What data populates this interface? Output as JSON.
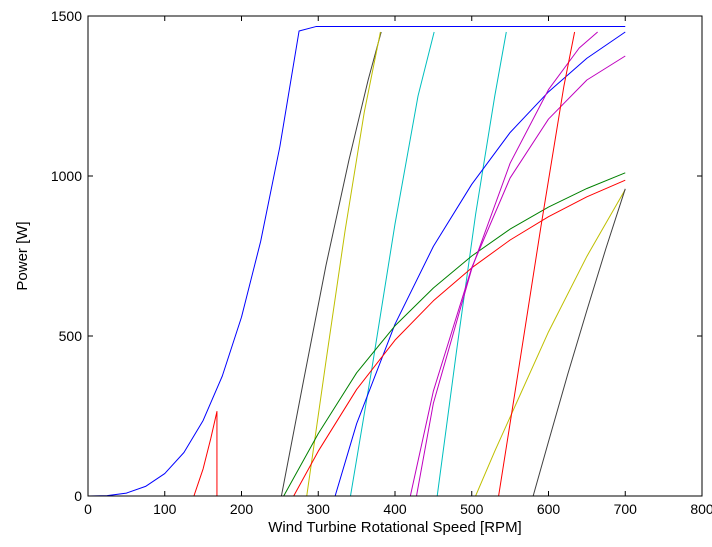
{
  "chart_data": {
    "type": "line",
    "title": "",
    "xlabel": "Wind Turbine Rotational Speed [RPM]",
    "ylabel": "Power [W]",
    "xlim": [
      0,
      800
    ],
    "ylim": [
      0,
      1500
    ],
    "xticks": [
      0,
      100,
      200,
      300,
      400,
      500,
      600,
      700,
      800
    ],
    "yticks": [
      0,
      500,
      1000,
      1500
    ],
    "grid": false,
    "legend": "none",
    "series": [
      {
        "color": "#0000ff",
        "x": [
          0,
          25,
          50,
          75,
          100,
          125,
          150,
          175,
          200,
          225,
          250,
          275,
          297,
          297.5,
          700
        ],
        "y": [
          0,
          1,
          9,
          30,
          70,
          136,
          236,
          375,
          559,
          796,
          1092,
          1453,
          1467,
          1467,
          1467
        ]
      },
      {
        "color": "#ff0000",
        "x": [
          0,
          138,
          150,
          160,
          168,
          168,
          700
        ],
        "y": [
          0,
          0,
          85,
          180,
          264,
          0,
          0
        ]
      },
      {
        "color": "#404040",
        "x": [
          0,
          252,
          280,
          310,
          340,
          365,
          382
        ],
        "y": [
          0,
          0,
          350,
          720,
          1050,
          1300,
          1450
        ]
      },
      {
        "color": "#bfbf00",
        "x": [
          0,
          285,
          310,
          335,
          360,
          381
        ],
        "y": [
          0,
          0,
          420,
          830,
          1200,
          1450
        ]
      },
      {
        "color": "#00bfbf",
        "x": [
          0,
          342,
          370,
          400,
          430,
          451
        ],
        "y": [
          0,
          0,
          400,
          850,
          1250,
          1450
        ]
      },
      {
        "color": "#00bfbf",
        "x": [
          0,
          455,
          480,
          505,
          530,
          545
        ],
        "y": [
          0,
          0,
          450,
          880,
          1250,
          1450
        ]
      },
      {
        "color": "#0000ff",
        "x": [
          0,
          322,
          350,
          400,
          450,
          500,
          550,
          600,
          650,
          700
        ],
        "y": [
          0,
          0,
          226,
          537,
          780,
          974,
          1136,
          1263,
          1368,
          1450
        ]
      },
      {
        "color": "#008000",
        "x": [
          0,
          255,
          300,
          350,
          400,
          450,
          500,
          550,
          600,
          650,
          700
        ],
        "y": [
          0,
          0,
          195,
          385,
          532,
          650,
          750,
          834,
          903,
          961,
          1010
        ]
      },
      {
        "color": "#ff0000",
        "x": [
          0,
          268,
          300,
          350,
          400,
          450,
          500,
          550,
          600,
          650,
          700
        ],
        "y": [
          0,
          0,
          140,
          333,
          487,
          610,
          713,
          800,
          873,
          935,
          987
        ]
      },
      {
        "color": "#bf00bf",
        "x": [
          0,
          420,
          450,
          500,
          550,
          600,
          650,
          700
        ],
        "y": [
          0,
          0,
          328,
          714,
          994,
          1178,
          1300,
          1375
        ]
      },
      {
        "color": "#bf00bf",
        "x": [
          0,
          428,
          450,
          500,
          550,
          600,
          640,
          664
        ],
        "y": [
          0,
          0,
          290,
          710,
          1040,
          1270,
          1400,
          1450
        ]
      },
      {
        "color": "#bfbf00",
        "x": [
          0,
          505,
          530,
          560,
          600,
          650,
          700
        ],
        "y": [
          0,
          0,
          140,
          300,
          513,
          749,
          958
        ]
      },
      {
        "color": "#ff0000",
        "x": [
          0,
          535,
          560,
          590,
          620,
          634
        ],
        "y": [
          0,
          0,
          380,
          840,
          1280,
          1450
        ]
      },
      {
        "color": "#404040",
        "x": [
          0,
          580,
          600,
          625,
          650,
          675,
          700
        ],
        "y": [
          0,
          0,
          170,
          380,
          580,
          775,
          960
        ]
      },
      {
        "color": "#0000ff",
        "x": [
          0,
          700
        ],
        "y": [
          0,
          0
        ]
      }
    ]
  }
}
